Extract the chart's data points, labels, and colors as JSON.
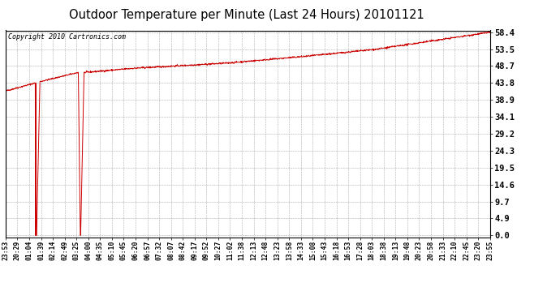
{
  "title": "Outdoor Temperature per Minute (Last 24 Hours) 20101121",
  "copyright_text": "Copyright 2010 Cartronics.com",
  "background_color": "#ffffff",
  "plot_bg_color": "#ffffff",
  "line_color": "#cc0000",
  "grid_color": "#999999",
  "yticks": [
    0.0,
    4.9,
    9.7,
    14.6,
    19.5,
    24.3,
    29.2,
    34.1,
    38.9,
    43.8,
    48.7,
    53.5,
    58.4
  ],
  "ymin": 0.0,
  "ymax": 58.4,
  "xtick_labels": [
    "23:53",
    "20:29",
    "01:04",
    "01:39",
    "02:14",
    "02:49",
    "03:25",
    "04:00",
    "04:35",
    "05:10",
    "05:45",
    "06:20",
    "06:57",
    "07:32",
    "08:07",
    "08:42",
    "09:17",
    "09:52",
    "10:27",
    "11:02",
    "11:38",
    "12:13",
    "12:48",
    "13:23",
    "13:58",
    "14:33",
    "15:08",
    "15:43",
    "16:18",
    "16:53",
    "17:28",
    "18:03",
    "18:38",
    "19:13",
    "19:48",
    "20:23",
    "20:58",
    "21:33",
    "22:10",
    "22:45",
    "23:20",
    "23:55"
  ]
}
